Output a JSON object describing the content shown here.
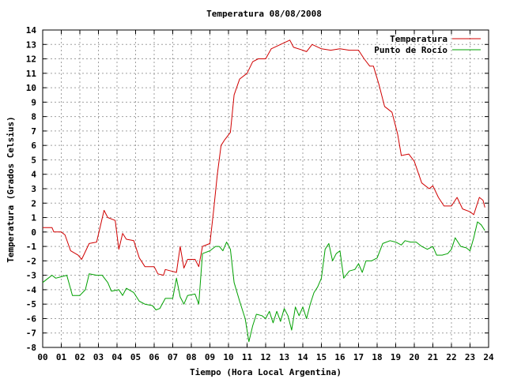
{
  "chart_data": {
    "type": "line",
    "title": "Temperatura 08/08/2008",
    "xlabel": "Tiempo (Hora Local Argentina)",
    "ylabel": "Temperatura (Grados Celsius)",
    "xlim": [
      0,
      24
    ],
    "ylim": [
      -8,
      14
    ],
    "x_ticks": [
      0,
      1,
      2,
      3,
      4,
      5,
      6,
      7,
      8,
      9,
      10,
      11,
      12,
      13,
      14,
      15,
      16,
      17,
      18,
      19,
      20,
      21,
      22,
      23,
      24
    ],
    "x_tick_labels": [
      "00",
      "01",
      "02",
      "03",
      "04",
      "05",
      "06",
      "07",
      "08",
      "09",
      "10",
      "11",
      "12",
      "13",
      "14",
      "15",
      "16",
      "17",
      "18",
      "19",
      "20",
      "21",
      "22",
      "23",
      "24"
    ],
    "y_ticks": [
      -8,
      -7,
      -6,
      -5,
      -4,
      -3,
      -2,
      -1,
      0,
      1,
      2,
      3,
      4,
      5,
      6,
      7,
      8,
      9,
      10,
      11,
      12,
      13,
      14
    ],
    "grid": true,
    "legend_position": "top-right",
    "series": [
      {
        "name": "Temperatura",
        "color": "#d00000",
        "points": [
          [
            0,
            0.3
          ],
          [
            0.5,
            0.3
          ],
          [
            0.6,
            0
          ],
          [
            1,
            0
          ],
          [
            1.2,
            -0.2
          ],
          [
            1.5,
            -1.3
          ],
          [
            1.9,
            -1.6
          ],
          [
            2.1,
            -1.9
          ],
          [
            2.5,
            -0.8
          ],
          [
            2.9,
            -0.7
          ],
          [
            3.1,
            0.4
          ],
          [
            3.3,
            1.5
          ],
          [
            3.5,
            1.0
          ],
          [
            3.9,
            0.8
          ],
          [
            4.1,
            -1.2
          ],
          [
            4.3,
            -0.1
          ],
          [
            4.5,
            -0.5
          ],
          [
            4.9,
            -0.6
          ],
          [
            5.2,
            -1.8
          ],
          [
            5.5,
            -2.4
          ],
          [
            6.0,
            -2.4
          ],
          [
            6.2,
            -2.9
          ],
          [
            6.5,
            -3.0
          ],
          [
            6.6,
            -2.6
          ],
          [
            6.9,
            -2.7
          ],
          [
            7.2,
            -2.8
          ],
          [
            7.4,
            -1.0
          ],
          [
            7.6,
            -2.5
          ],
          [
            7.8,
            -1.9
          ],
          [
            8.2,
            -1.9
          ],
          [
            8.4,
            -2.4
          ],
          [
            8.6,
            -1.0
          ],
          [
            9.0,
            -0.8
          ],
          [
            9.2,
            1.5
          ],
          [
            9.4,
            4.0
          ],
          [
            9.6,
            6.0
          ],
          [
            9.8,
            6.4
          ],
          [
            10.1,
            6.9
          ],
          [
            10.3,
            9.5
          ],
          [
            10.6,
            10.6
          ],
          [
            11.0,
            11.0
          ],
          [
            11.3,
            11.8
          ],
          [
            11.6,
            12.0
          ],
          [
            12.0,
            12.0
          ],
          [
            12.3,
            12.7
          ],
          [
            12.8,
            13.0
          ],
          [
            13.3,
            13.3
          ],
          [
            13.5,
            12.8
          ],
          [
            14.0,
            12.6
          ],
          [
            14.2,
            12.5
          ],
          [
            14.5,
            13.0
          ],
          [
            15.0,
            12.7
          ],
          [
            15.5,
            12.6
          ],
          [
            16.0,
            12.7
          ],
          [
            16.5,
            12.6
          ],
          [
            17.0,
            12.6
          ],
          [
            17.3,
            12.0
          ],
          [
            17.6,
            11.5
          ],
          [
            17.8,
            11.5
          ],
          [
            18.1,
            10.2
          ],
          [
            18.4,
            8.7
          ],
          [
            18.8,
            8.3
          ],
          [
            19.1,
            6.8
          ],
          [
            19.3,
            5.3
          ],
          [
            19.7,
            5.4
          ],
          [
            20.0,
            4.9
          ],
          [
            20.4,
            3.4
          ],
          [
            20.8,
            3.0
          ],
          [
            21.0,
            3.2
          ],
          [
            21.3,
            2.4
          ],
          [
            21.6,
            1.8
          ],
          [
            22.0,
            1.8
          ],
          [
            22.3,
            2.4
          ],
          [
            22.6,
            1.6
          ],
          [
            23.0,
            1.4
          ],
          [
            23.2,
            1.2
          ],
          [
            23.4,
            2.0
          ],
          [
            23.5,
            2.4
          ],
          [
            23.7,
            2.2
          ],
          [
            23.8,
            1.7
          ]
        ]
      },
      {
        "name": "Punto de Rocío",
        "color": "#00a000",
        "points": [
          [
            0,
            -3.5
          ],
          [
            0.3,
            -3.2
          ],
          [
            0.5,
            -3.0
          ],
          [
            0.7,
            -3.2
          ],
          [
            1.0,
            -3.1
          ],
          [
            1.3,
            -3.0
          ],
          [
            1.6,
            -4.4
          ],
          [
            2.0,
            -4.4
          ],
          [
            2.3,
            -4.0
          ],
          [
            2.5,
            -2.9
          ],
          [
            2.9,
            -3.0
          ],
          [
            3.2,
            -3.0
          ],
          [
            3.5,
            -3.5
          ],
          [
            3.7,
            -4.1
          ],
          [
            4.1,
            -4.0
          ],
          [
            4.3,
            -4.4
          ],
          [
            4.5,
            -3.9
          ],
          [
            4.9,
            -4.2
          ],
          [
            5.2,
            -4.8
          ],
          [
            5.5,
            -5.0
          ],
          [
            5.9,
            -5.1
          ],
          [
            6.1,
            -5.4
          ],
          [
            6.3,
            -5.3
          ],
          [
            6.6,
            -4.6
          ],
          [
            7.0,
            -4.6
          ],
          [
            7.2,
            -3.2
          ],
          [
            7.4,
            -4.5
          ],
          [
            7.6,
            -5.0
          ],
          [
            7.8,
            -4.4
          ],
          [
            8.2,
            -4.3
          ],
          [
            8.4,
            -5.0
          ],
          [
            8.6,
            -1.5
          ],
          [
            9.0,
            -1.3
          ],
          [
            9.3,
            -1.0
          ],
          [
            9.5,
            -1.0
          ],
          [
            9.7,
            -1.3
          ],
          [
            9.9,
            -0.7
          ],
          [
            10.1,
            -1.2
          ],
          [
            10.3,
            -3.5
          ],
          [
            10.6,
            -4.8
          ],
          [
            10.9,
            -6.0
          ],
          [
            11.1,
            -7.6
          ],
          [
            11.3,
            -6.5
          ],
          [
            11.5,
            -5.7
          ],
          [
            11.8,
            -5.8
          ],
          [
            12.0,
            -6.0
          ],
          [
            12.2,
            -5.5
          ],
          [
            12.4,
            -6.3
          ],
          [
            12.6,
            -5.5
          ],
          [
            12.8,
            -6.2
          ],
          [
            13.0,
            -5.3
          ],
          [
            13.2,
            -5.8
          ],
          [
            13.4,
            -6.8
          ],
          [
            13.6,
            -5.2
          ],
          [
            13.8,
            -5.8
          ],
          [
            14.0,
            -5.2
          ],
          [
            14.2,
            -6.0
          ],
          [
            14.4,
            -5.0
          ],
          [
            14.6,
            -4.2
          ],
          [
            14.8,
            -3.8
          ],
          [
            15.0,
            -3.2
          ],
          [
            15.2,
            -1.2
          ],
          [
            15.4,
            -0.8
          ],
          [
            15.6,
            -2.0
          ],
          [
            15.8,
            -1.5
          ],
          [
            16.0,
            -1.3
          ],
          [
            16.2,
            -3.2
          ],
          [
            16.5,
            -2.7
          ],
          [
            16.8,
            -2.6
          ],
          [
            17.0,
            -2.2
          ],
          [
            17.2,
            -2.8
          ],
          [
            17.4,
            -2.0
          ],
          [
            17.7,
            -2.0
          ],
          [
            18.0,
            -1.8
          ],
          [
            18.3,
            -0.8
          ],
          [
            18.7,
            -0.6
          ],
          [
            19.0,
            -0.7
          ],
          [
            19.3,
            -0.9
          ],
          [
            19.5,
            -0.6
          ],
          [
            19.8,
            -0.7
          ],
          [
            20.1,
            -0.7
          ],
          [
            20.4,
            -1.0
          ],
          [
            20.7,
            -1.2
          ],
          [
            21.0,
            -1.0
          ],
          [
            21.2,
            -1.6
          ],
          [
            21.5,
            -1.6
          ],
          [
            21.8,
            -1.5
          ],
          [
            22.0,
            -1.2
          ],
          [
            22.2,
            -0.4
          ],
          [
            22.5,
            -1.0
          ],
          [
            22.8,
            -1.1
          ],
          [
            23.0,
            -1.3
          ],
          [
            23.2,
            -0.4
          ],
          [
            23.4,
            0.7
          ],
          [
            23.6,
            0.5
          ],
          [
            23.8,
            0.1
          ]
        ]
      }
    ]
  }
}
